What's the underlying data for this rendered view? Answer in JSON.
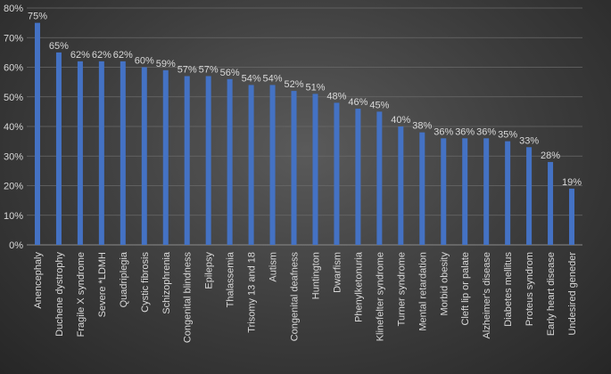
{
  "chart_data": {
    "type": "bar",
    "categories": [
      "Anencephaly",
      "Duchene dystrophy",
      "Fragile X syndrome",
      "Severe *LDMH",
      "Quadriplegia",
      "Cystic fibrosis",
      "Schizophrenia",
      "Congenital blindness",
      "Epilepsy",
      "Thalassemia",
      "Trisomy 13 and 18",
      "Autism",
      "Congenital deafness",
      "Huntington",
      "Dwarfism",
      "Phenylketonuria",
      "Klinefelter syndrome",
      "Turner syndrome",
      "Mental retardation",
      "Morbid obesity",
      "Cleft lip or palate",
      "Alzheimer's disease",
      "Diabetes mellitus",
      "Proteus syndrom",
      "Early heart disease",
      "Undesired geneder"
    ],
    "values": [
      75,
      65,
      62,
      62,
      62,
      60,
      59,
      57,
      57,
      56,
      54,
      54,
      52,
      51,
      48,
      46,
      45,
      40,
      38,
      36,
      36,
      36,
      35,
      33,
      28,
      19
    ],
    "data_labels": [
      "75%",
      "65%",
      "62%",
      "62%",
      "62%",
      "60%",
      "59%",
      "57%",
      "57%",
      "56%",
      "54%",
      "54%",
      "52%",
      "51%",
      "48%",
      "46%",
      "45%",
      "40%",
      "38%",
      "36%",
      "36%",
      "36%",
      "35%",
      "33%",
      "28%",
      "19%"
    ],
    "y_ticks": [
      "0%",
      "10%",
      "20%",
      "30%",
      "40%",
      "50%",
      "60%",
      "70%",
      "80%"
    ],
    "ylim": [
      0,
      80
    ],
    "grid": true,
    "bar_color": "#4472c4",
    "title": "",
    "xlabel": "",
    "ylabel": ""
  }
}
